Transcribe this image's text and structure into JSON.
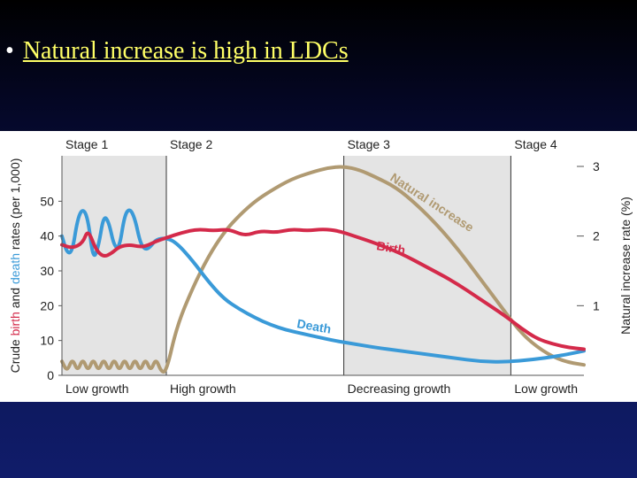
{
  "slide": {
    "bullet": "•",
    "title": "Natural increase is high in LDCs"
  },
  "colors": {
    "birth": "#d42a4a",
    "death": "#3a9ad8",
    "natural_increase": "#b09a72",
    "stage_band": "#e4e4e4",
    "title": "#ffff66"
  },
  "chart_data": {
    "type": "line",
    "left_axis": {
      "label_parts": [
        "Crude ",
        "birth",
        " and ",
        "death",
        " rates (per 1,000)"
      ],
      "ticks": [
        0,
        10,
        20,
        30,
        40,
        50
      ],
      "range": [
        0,
        60
      ]
    },
    "right_axis": {
      "label": "Natural increase rate (%)",
      "ticks": [
        1,
        2,
        3
      ],
      "range": [
        0,
        3
      ]
    },
    "x_range": [
      0,
      100
    ],
    "stages": [
      {
        "label": "Stage 1",
        "growth": "Low growth",
        "start": 0,
        "end": 20
      },
      {
        "label": "Stage 2",
        "growth": "High growth",
        "start": 20,
        "end": 54
      },
      {
        "label": "Stage 3",
        "growth": "Decreasing growth",
        "start": 54,
        "end": 86
      },
      {
        "label": "Stage 4",
        "growth": "Low growth",
        "start": 86,
        "end": 100
      }
    ],
    "series": [
      {
        "name": "Birth",
        "axis": "left",
        "points": [
          [
            0,
            37.5
          ],
          [
            2,
            36.5
          ],
          [
            4,
            38
          ],
          [
            5,
            42
          ],
          [
            6.5,
            36
          ],
          [
            8,
            34
          ],
          [
            9.5,
            35
          ],
          [
            11,
            37
          ],
          [
            13,
            37.5
          ],
          [
            14.5,
            37
          ],
          [
            16,
            37
          ],
          [
            18,
            38.5
          ],
          [
            20,
            39.5
          ],
          [
            23,
            41
          ],
          [
            26,
            42
          ],
          [
            29,
            41.5
          ],
          [
            32,
            42
          ],
          [
            35,
            40
          ],
          [
            38,
            41.5
          ],
          [
            41,
            41
          ],
          [
            44,
            42
          ],
          [
            47,
            41.5
          ],
          [
            50,
            42
          ],
          [
            53,
            41.5
          ],
          [
            56,
            40
          ],
          [
            60,
            38
          ],
          [
            65,
            35
          ],
          [
            70,
            31
          ],
          [
            75,
            27
          ],
          [
            80,
            22
          ],
          [
            85,
            17
          ],
          [
            88,
            13.5
          ],
          [
            91,
            10.5
          ],
          [
            94,
            9
          ],
          [
            97,
            8
          ],
          [
            100,
            7.5
          ]
        ]
      },
      {
        "name": "Death",
        "axis": "left",
        "points": [
          [
            0,
            40
          ],
          [
            1,
            35
          ],
          [
            2,
            35.5
          ],
          [
            3,
            45
          ],
          [
            4,
            48
          ],
          [
            5,
            45
          ],
          [
            6,
            33
          ],
          [
            7,
            37
          ],
          [
            8,
            46
          ],
          [
            9,
            44
          ],
          [
            10,
            37
          ],
          [
            11,
            36.5
          ],
          [
            12,
            46
          ],
          [
            13,
            48
          ],
          [
            14,
            45
          ],
          [
            15,
            38
          ],
          [
            16,
            36
          ],
          [
            17,
            37
          ],
          [
            18,
            39
          ],
          [
            20,
            39.5
          ],
          [
            22,
            38
          ],
          [
            25,
            33
          ],
          [
            28,
            27
          ],
          [
            31,
            22
          ],
          [
            34,
            19
          ],
          [
            37,
            16.5
          ],
          [
            40,
            14.5
          ],
          [
            43,
            13
          ],
          [
            46,
            12
          ],
          [
            49,
            11
          ],
          [
            52,
            10
          ],
          [
            56,
            9
          ],
          [
            60,
            8
          ],
          [
            65,
            7
          ],
          [
            70,
            6
          ],
          [
            75,
            5
          ],
          [
            80,
            4
          ],
          [
            85,
            3.8
          ],
          [
            90,
            4.5
          ],
          [
            95,
            5.5
          ],
          [
            100,
            7
          ]
        ]
      },
      {
        "name": "Natural increase",
        "axis": "right",
        "points": [
          [
            0,
            0.2
          ],
          [
            1,
            0.05
          ],
          [
            2,
            0.25
          ],
          [
            3,
            0.05
          ],
          [
            4,
            0.25
          ],
          [
            5,
            0.05
          ],
          [
            6,
            0.25
          ],
          [
            7,
            0.05
          ],
          [
            8,
            0.25
          ],
          [
            9,
            0.05
          ],
          [
            10,
            0.25
          ],
          [
            11,
            0.05
          ],
          [
            12,
            0.25
          ],
          [
            13,
            0.05
          ],
          [
            14,
            0.25
          ],
          [
            15,
            0.05
          ],
          [
            16,
            0.25
          ],
          [
            17,
            0.05
          ],
          [
            18,
            0.25
          ],
          [
            19,
            0.05
          ],
          [
            20,
            0.05
          ],
          [
            22,
            0.7
          ],
          [
            25,
            1.25
          ],
          [
            28,
            1.7
          ],
          [
            31,
            2.05
          ],
          [
            34,
            2.3
          ],
          [
            37,
            2.5
          ],
          [
            40,
            2.65
          ],
          [
            44,
            2.82
          ],
          [
            48,
            2.92
          ],
          [
            51,
            2.98
          ],
          [
            54,
            3.0
          ],
          [
            57,
            2.95
          ],
          [
            60,
            2.85
          ],
          [
            64,
            2.7
          ],
          [
            68,
            2.45
          ],
          [
            72,
            2.15
          ],
          [
            76,
            1.8
          ],
          [
            80,
            1.4
          ],
          [
            84,
            1.0
          ],
          [
            88,
            0.6
          ],
          [
            92,
            0.35
          ],
          [
            96,
            0.2
          ],
          [
            100,
            0.15
          ]
        ]
      }
    ],
    "annotations": [
      "Natural increase",
      "Birth",
      "Death"
    ]
  }
}
